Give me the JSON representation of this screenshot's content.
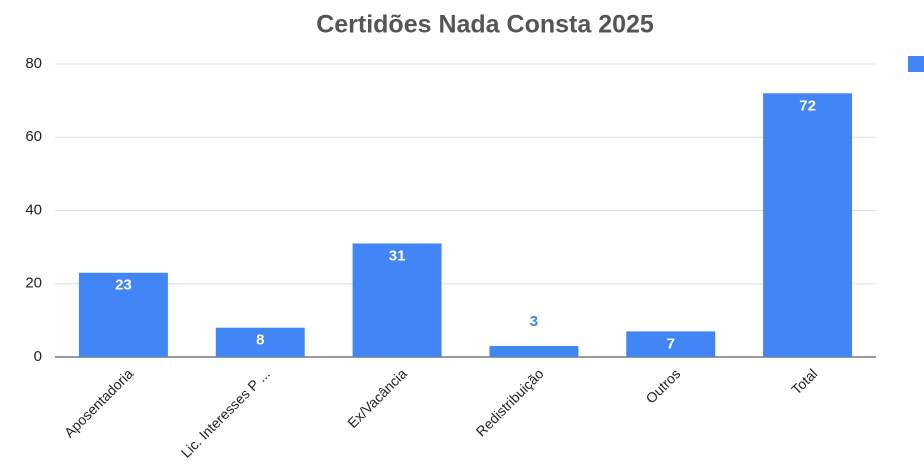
{
  "chart_data": {
    "type": "bar",
    "title": "Certidões Nada Consta 2025",
    "categories": [
      "Aposentadoria",
      "Lic. Interesses P ...",
      "Ex/Vacância",
      "Redistribuição",
      "Outros",
      "Total"
    ],
    "values": [
      23,
      8,
      31,
      3,
      7,
      72
    ],
    "color": "#4285f4",
    "ylim": [
      0,
      80
    ],
    "yticks": [
      0,
      20,
      40,
      60,
      80
    ],
    "grid": true
  }
}
